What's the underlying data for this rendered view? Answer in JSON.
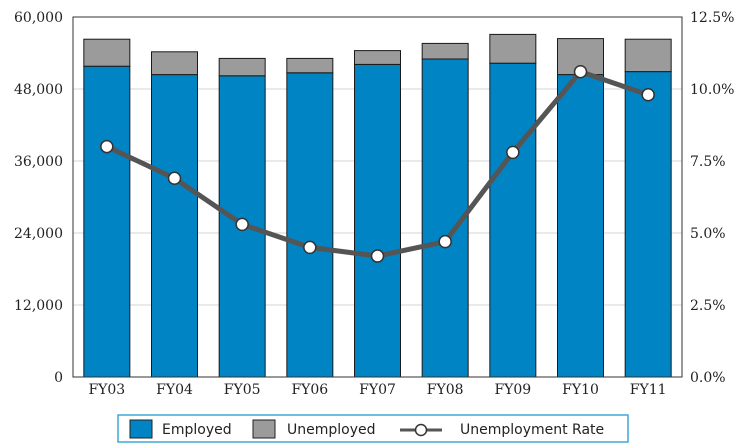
{
  "chart_data": {
    "type": "bar",
    "categories": [
      "FY03",
      "FY04",
      "FY05",
      "FY06",
      "FY07",
      "FY08",
      "FY09",
      "FY10",
      "FY11"
    ],
    "series": [
      {
        "name": "Employed",
        "kind": "bar-stacked",
        "axis": "left",
        "color": "#0084c4",
        "values": [
          51800,
          50400,
          50200,
          50700,
          52100,
          53000,
          52300,
          50400,
          50900
        ]
      },
      {
        "name": "Unemployed",
        "kind": "bar-stacked",
        "axis": "left",
        "color": "#9b9b9b",
        "values": [
          4500,
          3800,
          2900,
          2400,
          2300,
          2600,
          4800,
          6000,
          5400
        ]
      },
      {
        "name": "Unemployment Rate",
        "kind": "line",
        "axis": "right",
        "color": "#555555",
        "values": [
          8.0,
          6.9,
          5.3,
          4.5,
          4.2,
          4.7,
          7.8,
          10.6,
          9.8
        ]
      }
    ],
    "y_left": {
      "min": 0,
      "max": 60000,
      "ticks": [
        0,
        12000,
        24000,
        36000,
        48000,
        60000
      ],
      "tick_labels": [
        "0",
        "12,000",
        "24,000",
        "36,000",
        "48,000",
        "60,000"
      ]
    },
    "y_right": {
      "min": 0,
      "max": 12.5,
      "ticks": [
        0,
        2.5,
        5,
        7.5,
        10,
        12.5
      ],
      "tick_labels": [
        "0.0%",
        "2.5%",
        "5.0%",
        "7.5%",
        "10.0%",
        "12.5%"
      ]
    },
    "grid": true,
    "legend_position": "bottom-center",
    "legend": [
      "Employed",
      "Unemployed",
      "Unemployment Rate"
    ]
  }
}
